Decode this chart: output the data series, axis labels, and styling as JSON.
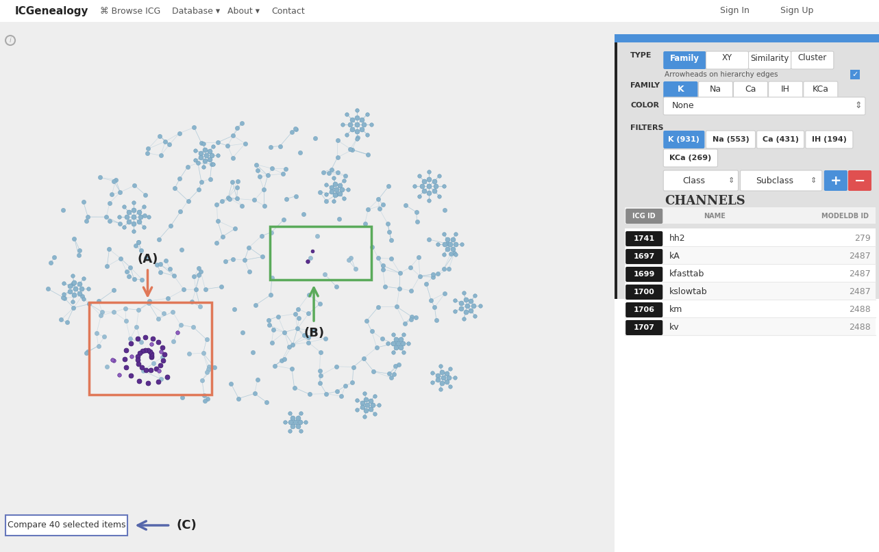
{
  "bg_color": "#eeeeee",
  "nav_bg": "#ffffff",
  "nav_items": [
    "ICGenealogy",
    "Browse ICG",
    "Database ▾",
    "About ▾",
    "Contact"
  ],
  "nav_right": [
    "Sign In",
    "Sign Up"
  ],
  "panel_blue_bar": "#4a90d9",
  "type_label": "TYPE",
  "type_buttons": [
    "Family",
    "XY",
    "Similarity",
    "Cluster"
  ],
  "arrowhead_text": "Arrowheads on hierarchy edges",
  "family_label": "FAMILY",
  "family_buttons": [
    "K",
    "Na",
    "Ca",
    "IH",
    "KCa"
  ],
  "color_label": "COLOR",
  "color_value": "None",
  "filters_label": "FILTERS",
  "filter_buttons": [
    "K (931)",
    "Na (553)",
    "Ca (431)",
    "IH (194)",
    "KCa (269)"
  ],
  "class_label": "Class",
  "subclass_label": "Subclass",
  "channels_title": "CHANNELS",
  "table_headers": [
    "ICG ID",
    "NAME",
    "MODELDB ID"
  ],
  "table_rows": [
    [
      "1741",
      "hh2",
      "279"
    ],
    [
      "1697",
      "kA",
      "2487"
    ],
    [
      "1699",
      "kfasttab",
      "2487"
    ],
    [
      "1700",
      "kslowtab",
      "2487"
    ],
    [
      "1706",
      "km",
      "2488"
    ],
    [
      "1707",
      "kv",
      "2488"
    ]
  ],
  "node_color_light": "#8ab4cc",
  "node_edge_color": "#6a9ab8",
  "node_purple": "#5b2d8e",
  "node_purple_light": "#9060c0",
  "button_blue": "#4a90d9",
  "button_red": "#e05050",
  "label_A": "(A)",
  "label_B": "(B)",
  "label_C": "(C)",
  "compare_btn_text": "Compare 40 selected items",
  "arrow_color_A": "#e07858",
  "arrow_color_B": "#5aaa5a",
  "arrow_color_C": "#5566aa",
  "rect_A_color": "#e07858",
  "rect_B_color": "#5aaa5a",
  "panel_bg": "#e0e0e0",
  "white": "#ffffff"
}
